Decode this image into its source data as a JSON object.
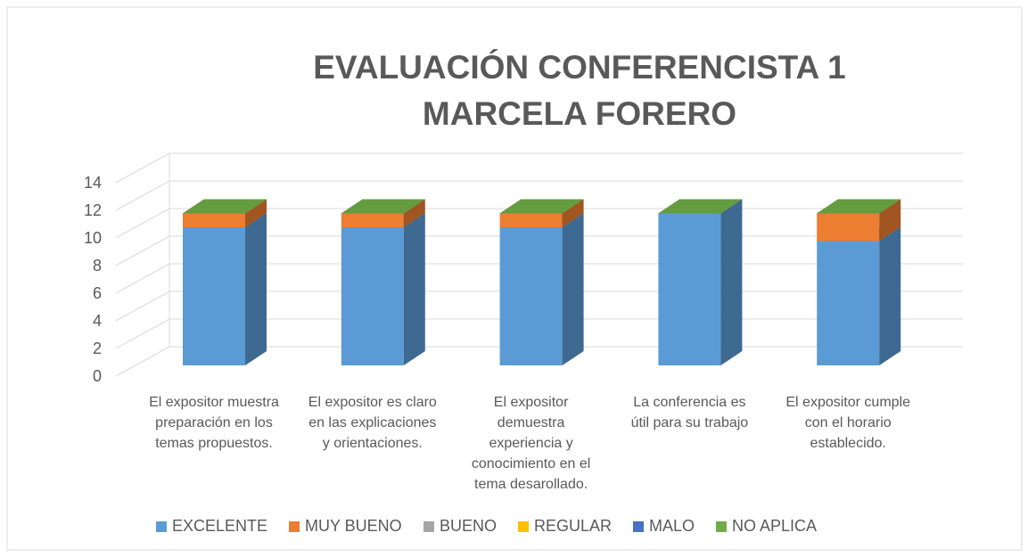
{
  "chart_data": {
    "type": "bar3d_stacked",
    "title": [
      "EVALUACIÓN CONFERENCISTA  1",
      "MARCELA FORERO"
    ],
    "categories": [
      "El expositor muestra preparación en los temas propuestos.",
      "El  expositor es claro en las explicaciones y orientaciones.",
      "El expositor demuestra experiencia y conocimiento en el tema desarollado.",
      "La conferencia es útil para su trabajo",
      "El expositor cumple con el horario establecido."
    ],
    "series": [
      {
        "name": "EXCELENTE",
        "color": "#5b9bd5",
        "values": [
          10,
          10,
          10,
          11,
          9
        ]
      },
      {
        "name": "MUY BUENO",
        "color": "#ed7d31",
        "values": [
          1,
          1,
          1,
          0,
          2
        ]
      },
      {
        "name": "BUENO",
        "color": "#a5a5a5",
        "values": [
          0,
          0,
          0,
          0,
          0
        ]
      },
      {
        "name": "REGULAR",
        "color": "#ffc000",
        "values": [
          0,
          0,
          0,
          0,
          0
        ]
      },
      {
        "name": "MALO",
        "color": "#4472c4",
        "values": [
          0,
          0,
          0,
          0,
          0
        ]
      },
      {
        "name": "NO APLICA",
        "color": "#70ad47",
        "values": [
          0,
          0,
          0,
          0,
          0
        ]
      }
    ],
    "ylim": [
      0,
      14
    ],
    "yticks": [
      0,
      2,
      4,
      6,
      8,
      10,
      12,
      14
    ],
    "grid": true,
    "legend": "bottom"
  }
}
